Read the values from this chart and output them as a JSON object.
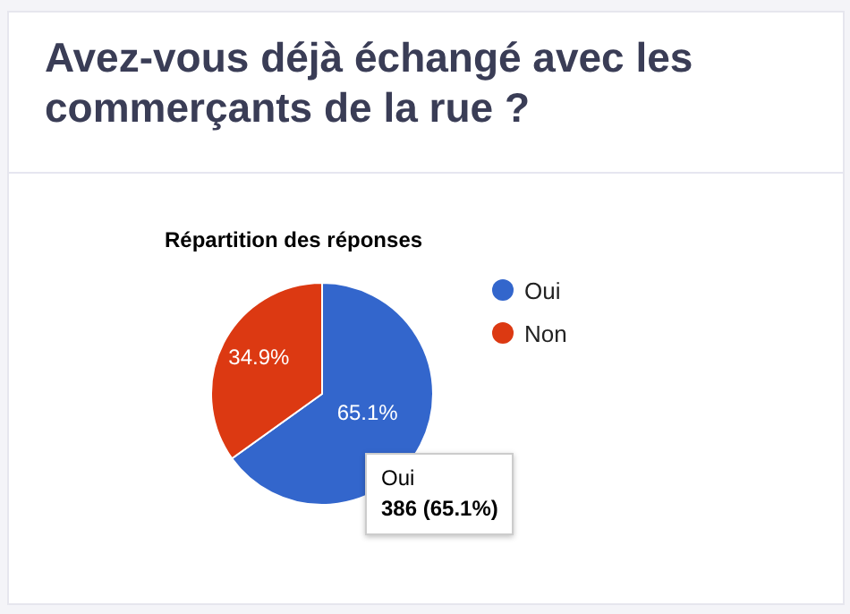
{
  "chart_data": {
    "type": "pie",
    "title": "Avez-vous déjà échangé avec les commerçants de la rue ?",
    "subtitle": "Répartition des réponses",
    "categories": [
      "Oui",
      "Non"
    ],
    "values": [
      65.1,
      34.9
    ],
    "colors": [
      "#3366cc",
      "#dc3912"
    ],
    "value_labels": [
      "65.1%",
      "34.9%"
    ],
    "legend": "right",
    "annotations": [
      "Oui",
      "386 (65.1%)"
    ]
  }
}
